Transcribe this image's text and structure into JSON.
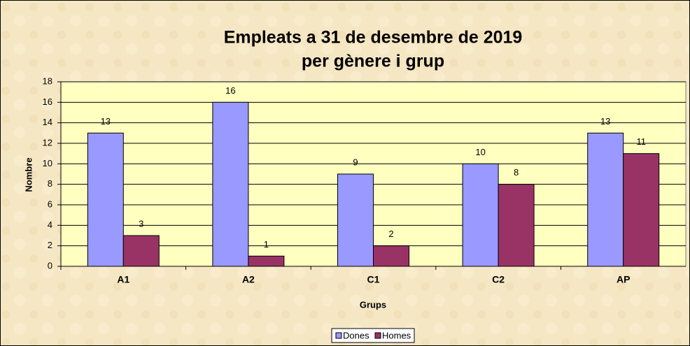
{
  "chart_data": {
    "type": "bar",
    "title": [
      "Empleats a 31 de desembre de 2019",
      "per gènere i grup"
    ],
    "x_label": "Grups",
    "y_label": "Nombre",
    "categories": [
      "A1",
      "A2",
      "C1",
      "C2",
      "AP"
    ],
    "series": [
      {
        "name": "Dones",
        "color": "#9999ff",
        "values": [
          13,
          16,
          9,
          10,
          13
        ]
      },
      {
        "name": "Homes",
        "color": "#993366",
        "values": [
          3,
          1,
          2,
          8,
          11
        ]
      }
    ],
    "ylim": [
      0,
      18
    ],
    "yticks": [
      0,
      2,
      4,
      6,
      8,
      10,
      12,
      14,
      16,
      18
    ],
    "grid": true,
    "legend": "bottom"
  }
}
